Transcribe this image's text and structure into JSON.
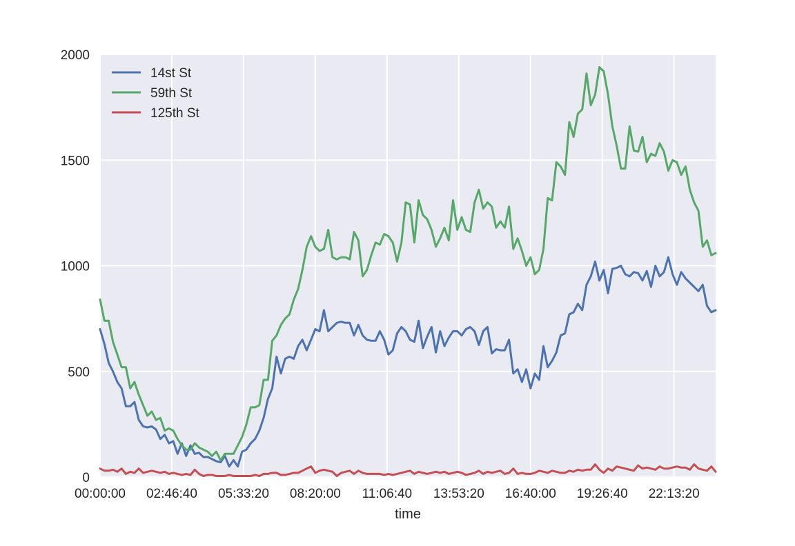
{
  "chart_data": {
    "type": "line",
    "title": "",
    "xlabel": "time",
    "ylabel": "",
    "x_ticks": [
      "00:00:00",
      "02:46:40",
      "05:33:20",
      "08:20:00",
      "11:06:40",
      "13:53:20",
      "16:40:00",
      "19:26:40",
      "22:13:20"
    ],
    "y_ticks": [
      0,
      500,
      1000,
      1500,
      2000
    ],
    "ylim": [
      0,
      2000
    ],
    "xlim_hours": [
      0,
      23.833
    ],
    "grid": true,
    "legend_position": "upper-left",
    "x_hours": [
      0,
      0.167,
      0.333,
      0.5,
      0.667,
      0.833,
      1,
      1.167,
      1.333,
      1.5,
      1.667,
      1.833,
      2,
      2.167,
      2.333,
      2.5,
      2.667,
      2.833,
      3,
      3.167,
      3.333,
      3.5,
      3.667,
      3.833,
      4,
      4.167,
      4.333,
      4.5,
      4.667,
      4.833,
      5,
      5.167,
      5.333,
      5.5,
      5.667,
      5.833,
      6,
      6.167,
      6.333,
      6.5,
      6.667,
      6.833,
      7,
      7.167,
      7.333,
      7.5,
      7.667,
      7.833,
      8,
      8.167,
      8.333,
      8.5,
      8.667,
      8.833,
      9,
      9.167,
      9.333,
      9.5,
      9.667,
      9.833,
      10,
      10.167,
      10.333,
      10.5,
      10.667,
      10.833,
      11,
      11.167,
      11.333,
      11.5,
      11.667,
      11.833,
      12,
      12.167,
      12.333,
      12.5,
      12.667,
      12.833,
      13,
      13.167,
      13.333,
      13.5,
      13.667,
      13.833,
      14,
      14.167,
      14.333,
      14.5,
      14.667,
      14.833,
      15,
      15.167,
      15.333,
      15.5,
      15.667,
      15.833,
      16,
      16.167,
      16.333,
      16.5,
      16.667,
      16.833,
      17,
      17.167,
      17.333,
      17.5,
      17.667,
      17.833,
      18,
      18.167,
      18.333,
      18.5,
      18.667,
      18.833,
      19,
      19.167,
      19.333,
      19.5,
      19.667,
      19.833,
      20,
      20.167,
      20.333,
      20.5,
      20.667,
      20.833,
      21,
      21.167,
      21.333,
      21.5,
      21.667,
      21.833,
      22,
      22.167,
      22.333,
      22.5,
      22.667,
      22.833,
      23,
      23.167,
      23.333,
      23.5,
      23.667,
      23.833
    ],
    "series": [
      {
        "name": "14st St",
        "color": "#4c72b0",
        "values": [
          700,
          630,
          540,
          500,
          450,
          420,
          335,
          335,
          355,
          270,
          240,
          235,
          240,
          225,
          180,
          200,
          160,
          170,
          110,
          160,
          100,
          150,
          110,
          115,
          95,
          95,
          85,
          75,
          70,
          100,
          50,
          80,
          50,
          120,
          130,
          160,
          180,
          220,
          280,
          370,
          420,
          570,
          490,
          560,
          570,
          560,
          620,
          650,
          600,
          650,
          700,
          690,
          790,
          690,
          710,
          730,
          735,
          730,
          730,
          670,
          720,
          670,
          650,
          645,
          645,
          690,
          650,
          580,
          600,
          680,
          710,
          690,
          650,
          640,
          740,
          610,
          665,
          710,
          590,
          690,
          620,
          660,
          690,
          690,
          670,
          700,
          710,
          690,
          625,
          690,
          710,
          585,
          605,
          600,
          600,
          650,
          490,
          510,
          450,
          510,
          420,
          490,
          460,
          620,
          520,
          550,
          590,
          670,
          680,
          770,
          780,
          820,
          790,
          910,
          950,
          1020,
          930,
          980,
          870,
          985,
          990,
          1000,
          960,
          950,
          970,
          965,
          930,
          975,
          900,
          1000,
          950,
          970,
          1040,
          960,
          910,
          970,
          940,
          920,
          900,
          880,
          910,
          810,
          780,
          790
        ]
      },
      {
        "name": "59th St",
        "color": "#55a868",
        "values": [
          840,
          740,
          740,
          640,
          580,
          520,
          520,
          420,
          450,
          390,
          340,
          290,
          310,
          270,
          280,
          220,
          230,
          220,
          180,
          150,
          130,
          130,
          160,
          140,
          130,
          120,
          100,
          120,
          80,
          110,
          110,
          110,
          150,
          190,
          250,
          330,
          330,
          340,
          460,
          460,
          645,
          670,
          720,
          750,
          770,
          840,
          890,
          980,
          1090,
          1140,
          1090,
          1070,
          1080,
          1170,
          1040,
          1030,
          1040,
          1040,
          1030,
          1160,
          1120,
          950,
          980,
          1050,
          1110,
          1100,
          1150,
          1140,
          1110,
          1020,
          1110,
          1300,
          1290,
          1110,
          1310,
          1240,
          1220,
          1170,
          1090,
          1130,
          1180,
          1120,
          1310,
          1170,
          1230,
          1170,
          1160,
          1300,
          1360,
          1270,
          1300,
          1280,
          1180,
          1210,
          1180,
          1280,
          1080,
          1130,
          1070,
          1000,
          1040,
          960,
          980,
          1080,
          1320,
          1310,
          1490,
          1470,
          1430,
          1680,
          1610,
          1720,
          1740,
          1910,
          1760,
          1810,
          1940,
          1920,
          1810,
          1660,
          1570,
          1460,
          1460,
          1660,
          1545,
          1540,
          1610,
          1490,
          1530,
          1520,
          1580,
          1540,
          1450,
          1500,
          1490,
          1430,
          1470,
          1360,
          1300,
          1260,
          1090,
          1120,
          1050,
          1060
        ]
      },
      {
        "name": "125th St",
        "color": "#c44e52",
        "values": [
          40,
          30,
          30,
          35,
          25,
          40,
          15,
          25,
          20,
          40,
          20,
          25,
          30,
          25,
          20,
          25,
          15,
          20,
          15,
          10,
          15,
          10,
          35,
          15,
          5,
          10,
          10,
          5,
          5,
          5,
          10,
          5,
          5,
          5,
          5,
          5,
          10,
          5,
          15,
          15,
          20,
          20,
          10,
          10,
          15,
          20,
          20,
          30,
          40,
          50,
          20,
          30,
          35,
          30,
          25,
          5,
          20,
          25,
          30,
          15,
          30,
          20,
          15,
          15,
          15,
          15,
          10,
          15,
          10,
          15,
          20,
          25,
          30,
          15,
          25,
          20,
          15,
          20,
          25,
          20,
          25,
          15,
          20,
          25,
          20,
          10,
          15,
          20,
          30,
          15,
          25,
          20,
          25,
          30,
          15,
          20,
          40,
          15,
          20,
          15,
          15,
          20,
          30,
          25,
          20,
          30,
          25,
          20,
          20,
          30,
          25,
          35,
          30,
          35,
          35,
          60,
          35,
          20,
          40,
          30,
          50,
          45,
          40,
          35,
          30,
          55,
          40,
          45,
          40,
          35,
          50,
          40,
          40,
          45,
          50,
          45,
          45,
          35,
          60,
          40,
          35,
          30,
          50,
          25
        ]
      }
    ]
  }
}
